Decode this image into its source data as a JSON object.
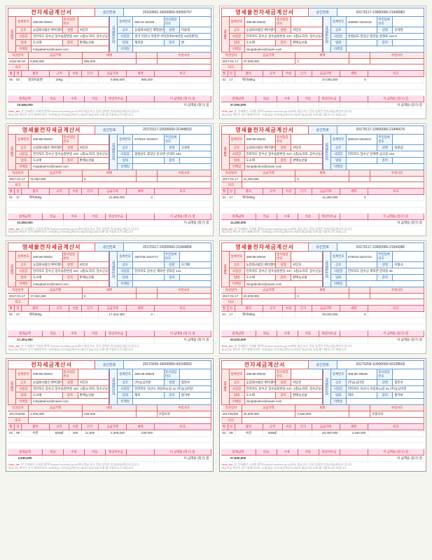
{
  "common": {
    "title_std": "전자세금계산서",
    "title_zero": "영세율전자세금계산서",
    "appr_label": "승인번호",
    "supplier_strip": "공급자",
    "receiver_strip": "공급받는자",
    "labels": {
      "reg": "등록번호",
      "sub": "종사업장번호",
      "name": "상호",
      "ceo": "성명",
      "addr": "사업장",
      "biz": "업태",
      "item": "종목",
      "email": "이메일"
    },
    "meta": {
      "date": "작성일자",
      "supply": "공급가액",
      "tax": "세액",
      "note": "수정사유"
    },
    "note_label": "비고",
    "items_head": [
      "월",
      "일",
      "품목",
      "규격",
      "수량",
      "단가",
      "공급가액",
      "세액",
      "비고"
    ],
    "sum_head": [
      "합계금액",
      "현금",
      "수표",
      "어음",
      "외상미수금",
      "",
      "이 금액을 (청구) 함"
    ],
    "footer1": "본 인쇄물은 국세청 홈택스(www.hometax.go.kr)에서 발급 또는 전송 입력된 전자(세금)계산서 입니다.",
    "footer2": "발급사실 확인은 상기 홈페이지의 \"조회/발급>전자세금계산서>제3자 발급사실 조회\"를 이용하시기 바랍니다.",
    "hometax": "Hom_tax."
  },
  "supplier_default": {
    "reg": "408-86-00042",
    "name": "농업회사법인 ㈜이쌀이쌀 대표",
    "ceo": "서민호",
    "addr": "전라북도 장수군 장수읍창변길 437, 1층(노하리, 장수군농업기술센터)",
    "biz": "도소매",
    "item": "판매농산물",
    "email": "minpabulrice@naver.com"
  },
  "invoices": [
    {
      "title_key": "title_std",
      "appr": "20160502-10000000-59050757",
      "receiver": {
        "reg": "565-81-00165",
        "sub": "",
        "name": "농업회사법인 해밀원(주)",
        "ceo": "이송희",
        "addr": "경기 이천시 마장면 서이천로578번길 10(작촌리)",
        "biz": "제조업",
        "item": "쌀"
      },
      "date": "2016-05-02",
      "supply": "9,860,000",
      "tax": "986,000",
      "line": {
        "m": "05",
        "d": "02",
        "item": "쌀과자용쌀",
        "spec": "20kg",
        "qty": "",
        "unit": "",
        "amt": "9,860,000",
        "tax": "986,000"
      },
      "total": "10,846,000"
    },
    {
      "title_key": "title_zero",
      "appr": "20170117-10000000-21948982",
      "receiver": {
        "reg": "400800-1624415",
        "sub_label": "주민등록번호",
        "name": "",
        "ceo": "신대영",
        "addr": "충청남도 청양군 청양읍 충절로 112-6",
        "biz": "",
        "item": ""
      },
      "date": "2017-01-17",
      "supply": "37,000,000",
      "tax": "0",
      "line": {
        "m": "01",
        "d": "17",
        "item": "백미80kg",
        "spec": "",
        "qty": "",
        "unit": "",
        "amt": "37,000,000",
        "tax": "0"
      },
      "total": "37,000,000"
    },
    {
      "title_key": "title_zero",
      "appr": "20170117-10000000-21948533",
      "receiver": {
        "reg": "570515-1102017",
        "sub_label": "주민등록번호",
        "name": "",
        "ceo": "고성훈",
        "addr": "충청남도 청양군 운곡면 신대리 183",
        "biz": "",
        "item": ""
      },
      "date": "2017-01-17",
      "supply": "21,550,000",
      "tax": "0",
      "line": {
        "m": "01",
        "d": "17",
        "item": "백미80kg",
        "spec": "",
        "qty": "",
        "unit": "",
        "amt": "21,550,000",
        "tax": "0"
      },
      "total": "21,550,000"
    },
    {
      "title_key": "title_zero",
      "appr": "20170117-10000000-21946676",
      "receiver": {
        "reg": "580210-1624511",
        "sub_label": "주민등록번호",
        "name": "",
        "ceo": "김준섭",
        "addr": "전라북도 장수군 장계면 금곡길 162",
        "biz": "",
        "item": ""
      },
      "date": "2017-01-17",
      "supply": "11,250,000",
      "tax": "0",
      "line": {
        "m": "01",
        "d": "17",
        "item": "백미80kg",
        "spec": "",
        "qty": "",
        "unit": "",
        "amt": "11,250,000",
        "tax": "0"
      },
      "total": "11,250,000"
    },
    {
      "title_key": "title_zero",
      "appr": "20170117-10000000-21944858",
      "receiver": {
        "reg": "460708-1624717",
        "sub_label": "주민등록번호",
        "name": "",
        "ceo": "오기배",
        "addr": "전라북도 장수군 계북면 양악길 141",
        "biz": "",
        "item": ""
      },
      "date": "2017-01-17",
      "supply": "17,404,350",
      "tax": "0",
      "line": {
        "m": "01",
        "d": "17",
        "item": "백미80kg",
        "spec": "",
        "qty": "",
        "unit": "",
        "amt": "17,404,350",
        "tax": "0"
      },
      "total": "17,404,350"
    },
    {
      "title_key": "title_zero",
      "appr": "20170117-10000000-21944386",
      "receiver": {
        "reg": "570615-1624723",
        "sub_label": "주민등록번호",
        "name": "",
        "ceo": "이철규",
        "addr": "전라북도 장수군 계북면 양악길 29",
        "biz": "",
        "item": ""
      },
      "date": "2017-01-17",
      "supply": "20,020,000",
      "tax": "0",
      "line": {
        "m": "01",
        "d": "17",
        "item": "백미80kg",
        "spec": "",
        "qty": "",
        "unit": "",
        "amt": "20,020,000",
        "tax": "0"
      },
      "total": "20,020,000"
    },
    {
      "title_key": "title_std",
      "alt": true,
      "appr": "20170209-10000000-43100002",
      "receiver": {
        "reg": "408-86-29528",
        "sub": "",
        "name": "(주)농심미분",
        "ceo": "정진수",
        "addr": "전라북도 익산시 석암로11길 31 (주)농심미분",
        "biz": "제조",
        "item": "쌀가루"
      },
      "date": "2017/02/09",
      "supply": "2,300,000",
      "tax": "230,000",
      "line": {
        "m": "02",
        "d": "09",
        "item": "수분",
        "spec": "500㎖",
        "qty": "200",
        "unit": "11,500",
        "amt": "2,300,000",
        "tax": "230,000"
      },
      "total": "2,530,000",
      "note_val": "수정사유"
    },
    {
      "title_key": "title_std",
      "alt": true,
      "appr": "20170209-10000000-43128602",
      "receiver": {
        "reg": "408-86-29528",
        "sub": "",
        "name": "(주)농심미분",
        "ceo": "정진수",
        "addr": "전라북도 익산시 석암로11길 31 (주)농심미분",
        "biz": "제조",
        "item": "쌀가루"
      },
      "date": "2017/02/09",
      "supply": "25,300,000",
      "tax": "2,530,000",
      "line": {
        "m": "02",
        "d": "09",
        "item": "수분",
        "spec": "500㎖",
        "qty": "",
        "unit": "",
        "amt": "25,300,000",
        "tax": "2,530,000"
      },
      "total": "27,830,000",
      "note_val": "수정사유"
    }
  ]
}
